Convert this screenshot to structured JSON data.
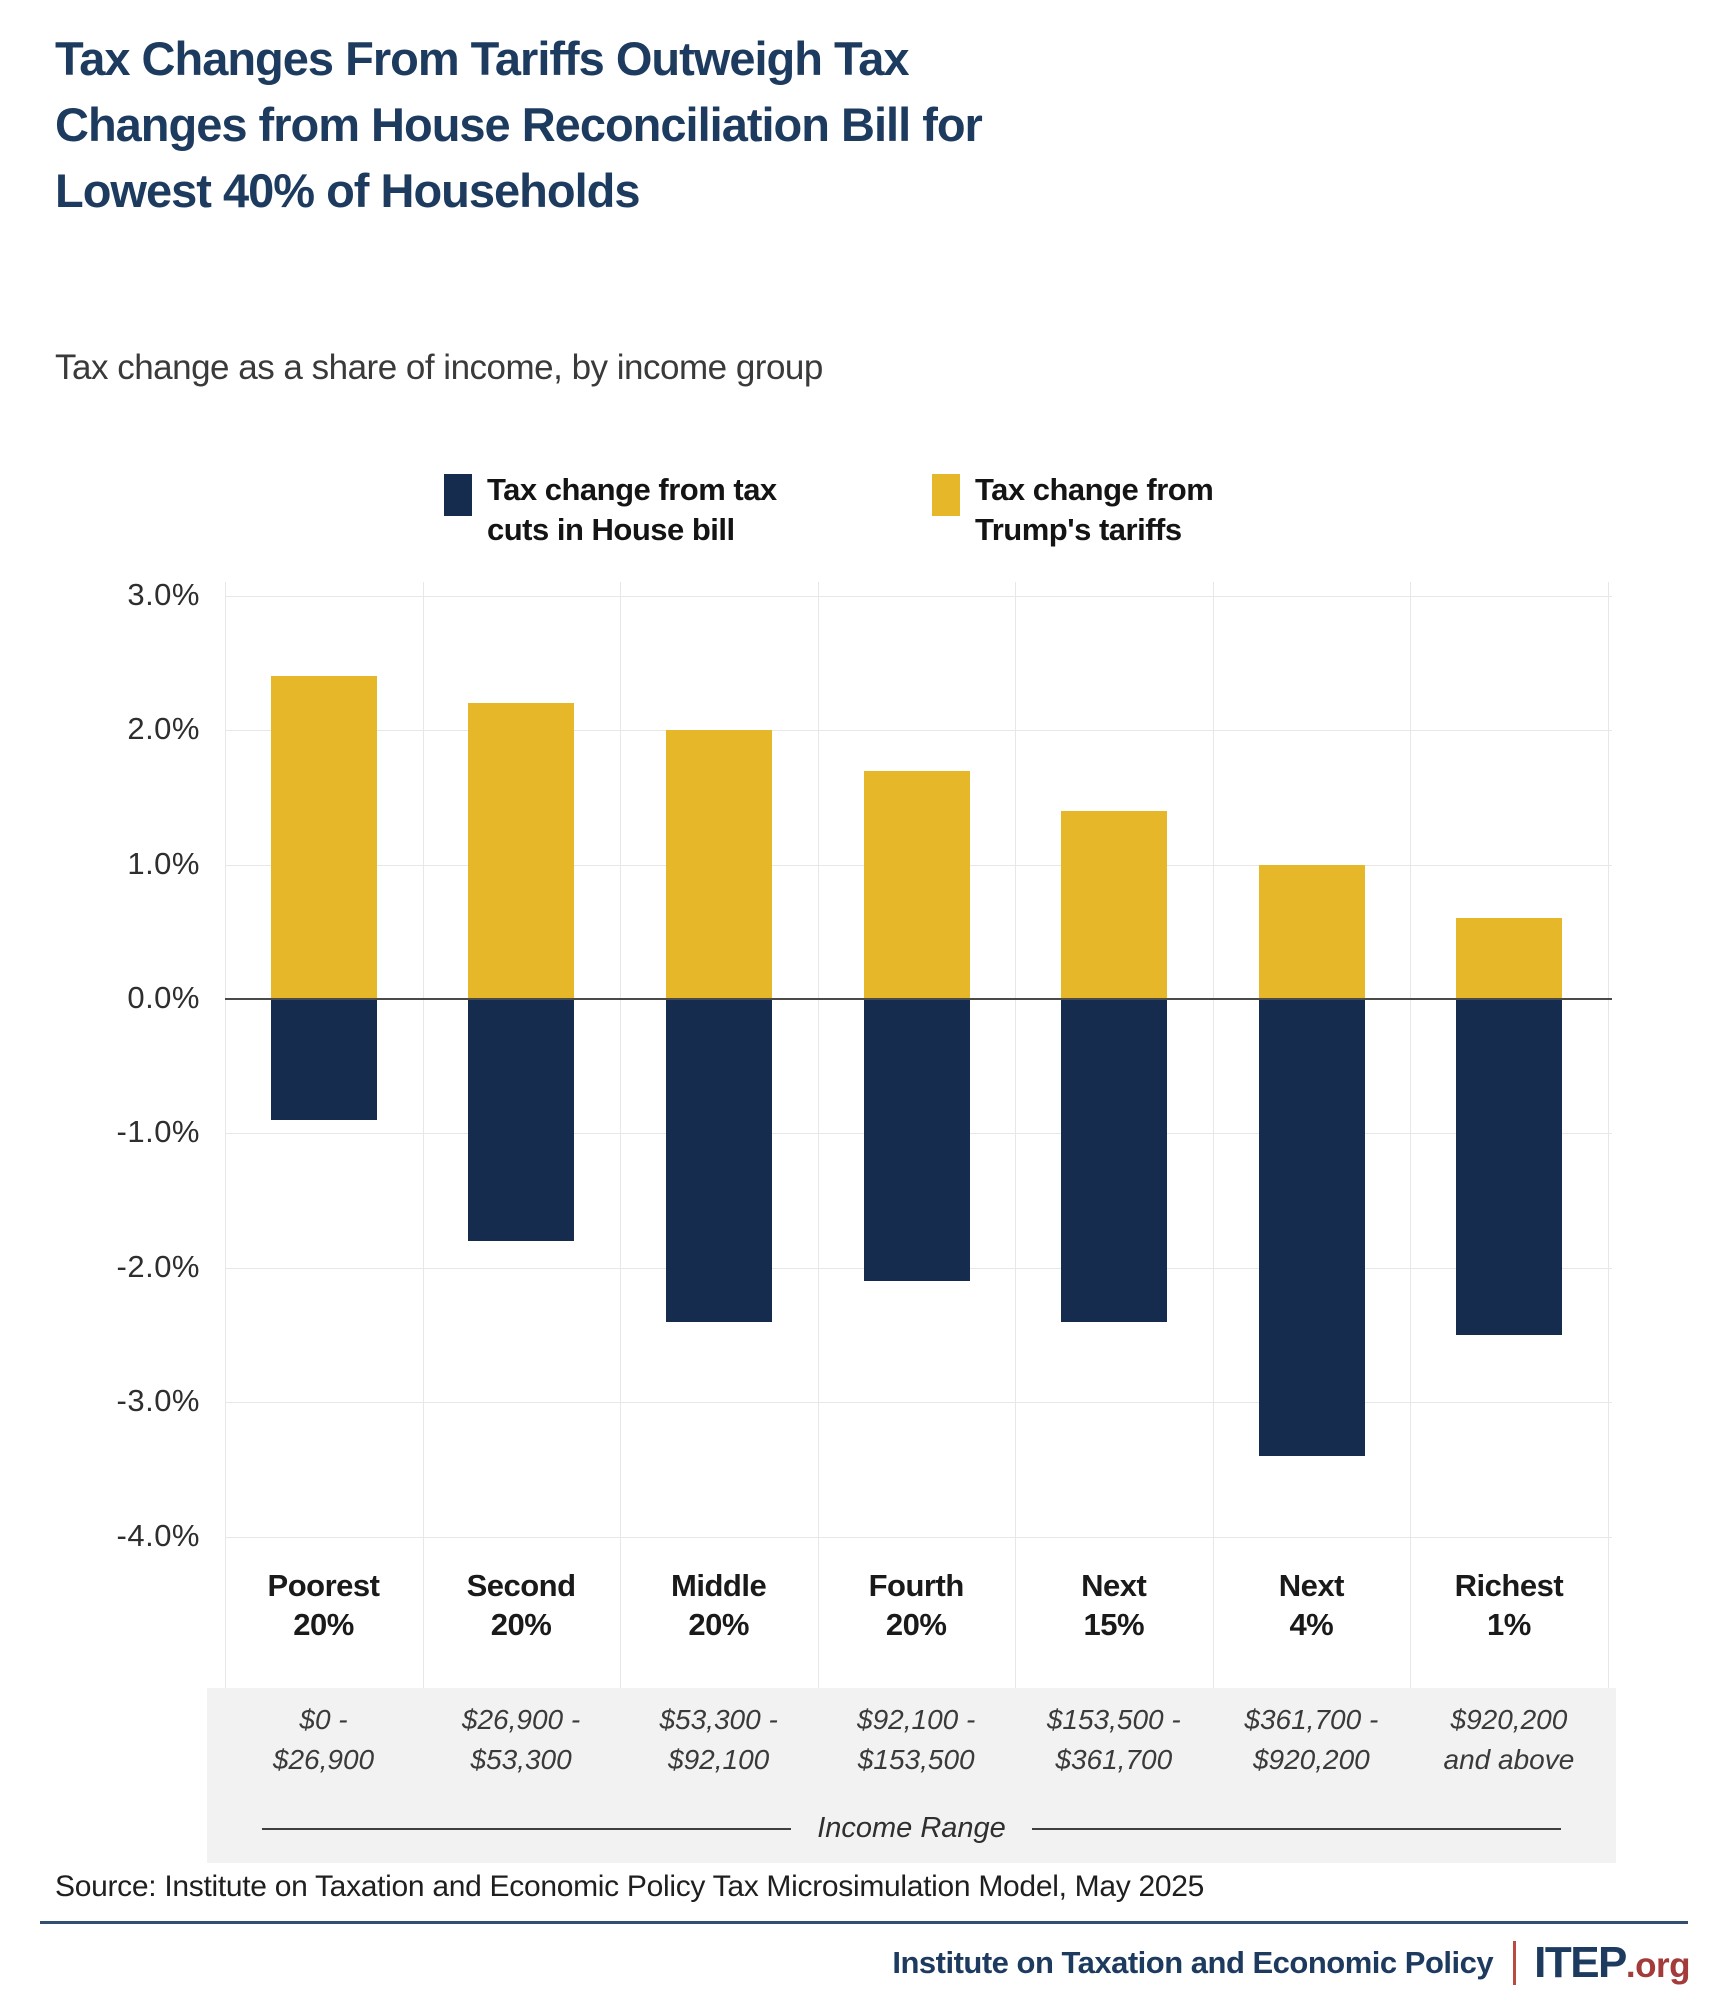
{
  "title_lines": [
    "Tax Changes From Tariffs Outweigh Tax",
    "Changes from House Reconciliation Bill for",
    "Lowest 40% of Households"
  ],
  "title": "Tax Changes From Tariffs Outweigh Tax Changes from House Reconciliation Bill for Lowest 40% of Households",
  "subtitle": "Tax change as a share of income, by income group",
  "legend": [
    {
      "label_line1": "Tax change from tax",
      "label_line2": "cuts in House bill",
      "color": "#152c4e"
    },
    {
      "label_line1": "Tax change from",
      "label_line2": "Trump's tariffs",
      "color": "#e6b829"
    }
  ],
  "chart_data": {
    "type": "bar",
    "stacked": true,
    "categories": [
      "Poorest 20%",
      "Second 20%",
      "Middle 20%",
      "Fourth 20%",
      "Next 15%",
      "Next 4%",
      "Richest 1%"
    ],
    "category_lines": [
      [
        "Poorest",
        "20%"
      ],
      [
        "Second",
        "20%"
      ],
      [
        "Middle",
        "20%"
      ],
      [
        "Fourth",
        "20%"
      ],
      [
        "Next",
        "15%"
      ],
      [
        "Next",
        "4%"
      ],
      [
        "Richest",
        "1%"
      ]
    ],
    "income_ranges": [
      [
        "$0 -",
        "$26,900"
      ],
      [
        "$26,900 -",
        "$53,300"
      ],
      [
        "$53,300 -",
        "$92,100"
      ],
      [
        "$92,100 -",
        "$153,500"
      ],
      [
        "$153,500 -",
        "$361,700"
      ],
      [
        "$361,700 -",
        "$920,200"
      ],
      [
        "$920,200",
        "and above"
      ]
    ],
    "series": [
      {
        "name": "Tax change from tax cuts in House bill",
        "color": "#152c4e",
        "values": [
          -0.9,
          -1.8,
          -2.4,
          -2.1,
          -2.4,
          -3.4,
          -2.5
        ]
      },
      {
        "name": "Tax change from Trump's tariffs",
        "color": "#e6b829",
        "values": [
          2.4,
          2.2,
          2.0,
          1.7,
          1.4,
          1.0,
          0.6
        ]
      }
    ],
    "yticks": [
      3,
      2,
      1,
      0,
      -1,
      -2,
      -3,
      -4
    ],
    "ylim": [
      -4,
      3
    ],
    "ytick_format": "percent_one_decimal",
    "grid": true,
    "legend_position": "top",
    "xlabel": "Income Range",
    "ylabel": ""
  },
  "income_range_axis_label": "Income Range",
  "source": "Source: Institute on Taxation and Economic Policy Tax Microsimulation Model, May 2025",
  "footer": {
    "org": "Institute on Taxation and Economic Policy",
    "brand": "ITEP",
    "brand_suffix": ".org"
  },
  "colors": {
    "house_bill_bar": "#152c4e",
    "tariff_bar": "#e6b829",
    "title_navy": "#1d3a5f",
    "brand_red": "#a23b39",
    "rule_navy": "#31506f",
    "income_band_gray": "#f2f2f2"
  }
}
